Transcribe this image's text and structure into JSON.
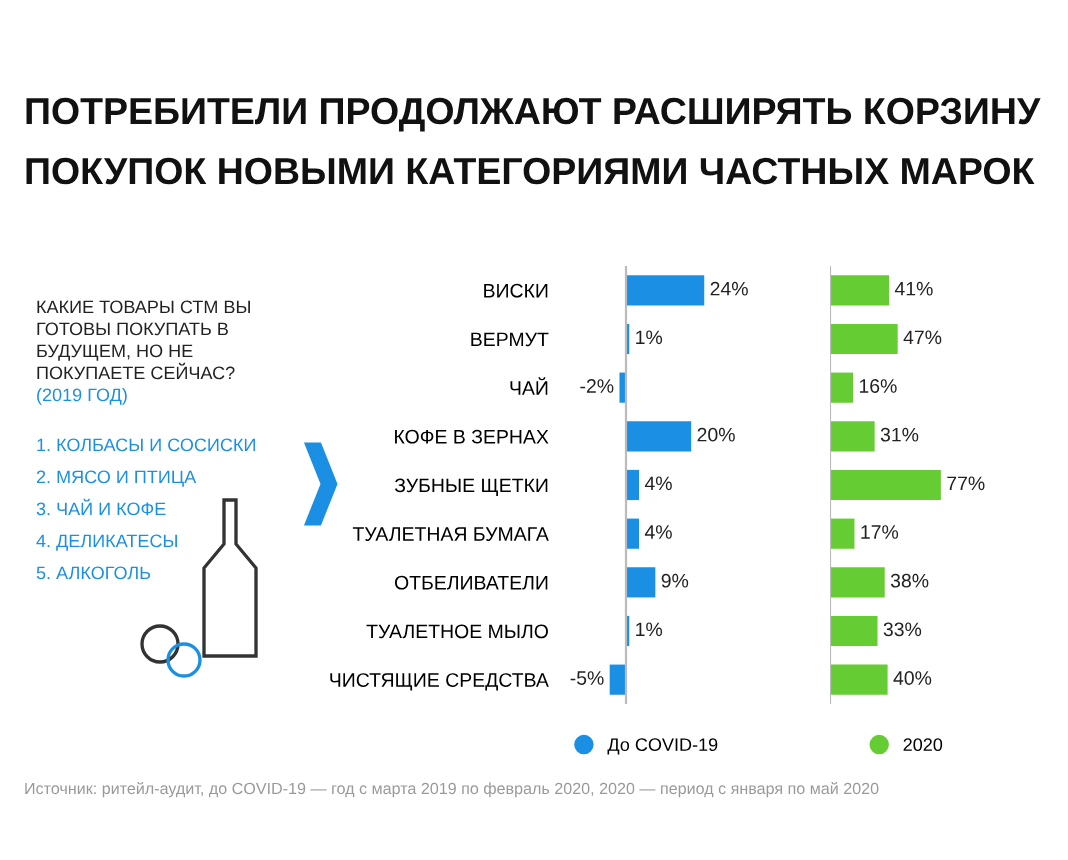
{
  "chart_data": [
    {
      "type": "other",
      "title": "КАКИЕ ТОВАРЫ СТМ ВЫ ГОТОВЫ ПОКУПАТЬ В БУДУЩЕМ, НО НЕ ПОКУПАЕТЕ СЕЙЧАС?",
      "subtitle": "(2019 ГОД)",
      "annotations": [
        "1. КОЛБАСЫ И СОСИСКИ",
        "2. МЯСО И ПТИЦА",
        "3. ЧАЙ И КОФЕ",
        "4. ДЕЛИКАТЕСЫ",
        "5. АЛКОГОЛЬ"
      ]
    },
    {
      "type": "bar",
      "orientation": "horizontal",
      "title": "ПОТРЕБИТЕЛИ ПРОДОЛЖАЮТ РАСШИРЯТЬ КОРЗИНУ ПОКУПОК НОВЫМИ КАТЕГОРИЯМИ ЧАСТНЫХ МАРОК",
      "annotations": [
        "Источник: ритейл-аудит, до COVID-19 — год с марта 2019 по февраль 2020, 2020 — период с января по май 2020"
      ],
      "categories": [
        "ВИСКИ",
        "ВЕРМУТ",
        "ЧАЙ",
        "КОФЕ В ЗЕРНАХ",
        "ЗУБНЫЕ ЩЕТКИ",
        "ТУАЛЕТНАЯ БУМАГА",
        "ОТБЕЛИВАТЕЛИ",
        "ТУАЛЕТНОЕ МЫЛО",
        "ЧИСТЯЩИЕ СРЕДСТВА"
      ],
      "series": [
        {
          "name": "До COVID-19",
          "color": "#1a8fe3",
          "values": [
            24,
            1,
            -2,
            20,
            4,
            4,
            9,
            1,
            -5
          ],
          "value_labels": [
            "24%",
            "1%",
            "-2%",
            "20%",
            "4%",
            "4%",
            "9%",
            "1%",
            "-5%"
          ]
        }
      ],
      "legend": "bottom",
      "grid": false
    },
    {
      "type": "bar",
      "orientation": "horizontal",
      "categories": [
        null,
        null,
        null,
        null,
        null,
        null,
        null,
        null,
        null
      ],
      "series": [
        {
          "name": "2020",
          "color": "#66cc33",
          "values": [
            41,
            47,
            16,
            31,
            77,
            17,
            38,
            33,
            40
          ],
          "value_labels": [
            "41%",
            "47%",
            "16%",
            "31%",
            "77%",
            "17%",
            "38%",
            "33%",
            "40%"
          ]
        }
      ],
      "legend": "bottom",
      "grid": false
    }
  ]
}
